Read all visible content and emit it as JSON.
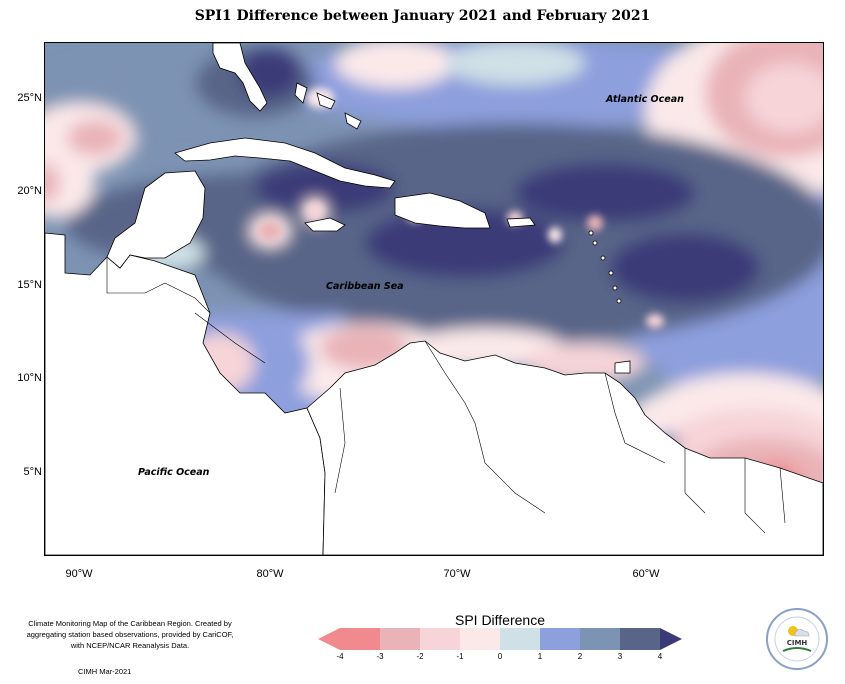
{
  "title": "SPI1 Difference between January 2021 and February 2021",
  "latitude_labels": [
    "25°N",
    "20°N",
    "15°N",
    "10°N",
    "5°N"
  ],
  "longitude_labels": [
    "90°W",
    "80°W",
    "70°W",
    "60°W"
  ],
  "place_labels": {
    "atlantic": "Atlantic Ocean",
    "caribbean": "Caribbean Sea",
    "pacific": "Pacific Ocean"
  },
  "credit_text": "Climate Monitoring Map of the Caribbean Region. Created by aggregating station based observations, provided by CariCOF, with NCEP/NCAR Reanalysis Data.",
  "issuer_date": "CIMH Mar-2021",
  "legend": {
    "title": "SPI Difference",
    "ticks": [
      "-4",
      "-3",
      "-2",
      "-1",
      "0",
      "1",
      "2",
      "3",
      "4"
    ],
    "colors": [
      "#f08a8e",
      "#e9b3b8",
      "#f6d4d8",
      "#fbe9ea",
      "#cfe0e6",
      "#8d9fdd",
      "#7d93b3",
      "#586588",
      "#3a3a78"
    ]
  },
  "logo_text": "CIMH",
  "colors": {
    "very_dry": "#f08a8e",
    "dry": "#e9b3b8",
    "slightly_dry": "#f6d4d8",
    "near_normal_dry": "#fbe9ea",
    "near_normal_wet": "#cfe0e6",
    "slightly_wet": "#8d9fdd",
    "wet": "#7d93b3",
    "very_wet": "#586588",
    "extremely_wet": "#3a3a78"
  }
}
